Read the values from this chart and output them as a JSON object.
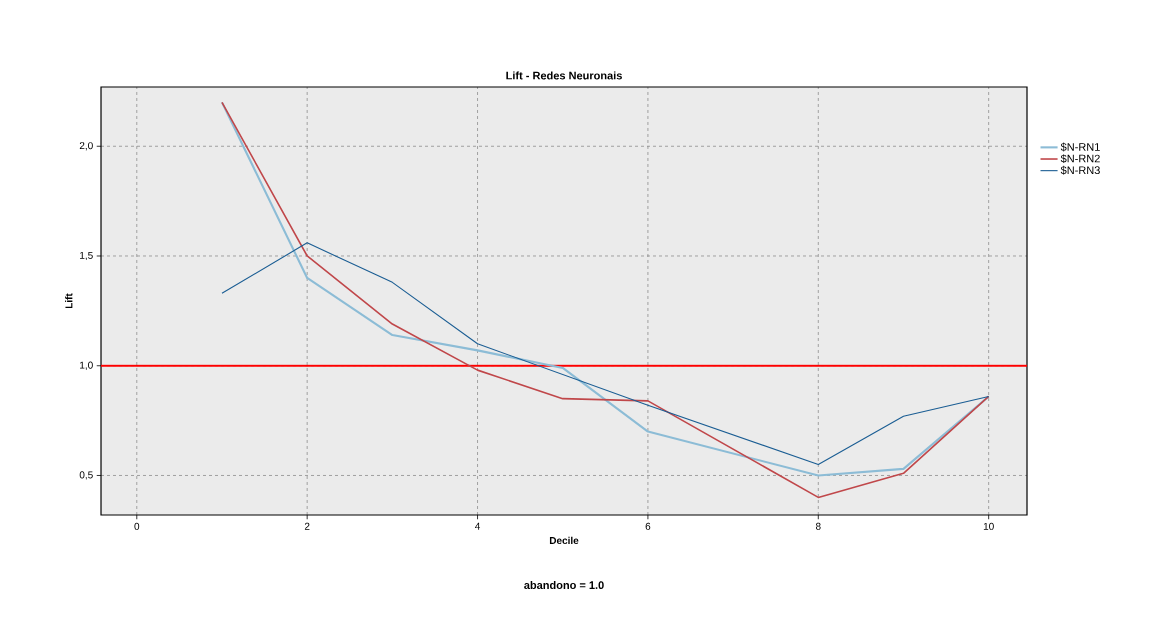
{
  "chart_data": {
    "type": "line",
    "title": "Lift - Redes Neuronais",
    "xlabel": "Decile",
    "ylabel": "Lift",
    "series": [
      {
        "name": "$N-RN1",
        "color": "#8cbcd6",
        "x": [
          1,
          2,
          3,
          4,
          5,
          6,
          8,
          9,
          10
        ],
        "values": [
          2.2,
          1.4,
          1.14,
          1.07,
          0.99,
          0.7,
          0.5,
          0.53,
          0.86
        ]
      },
      {
        "name": "$N-RN2",
        "color": "#c0474a",
        "x": [
          1,
          2,
          3,
          4,
          5,
          6,
          8,
          9,
          10
        ],
        "values": [
          2.2,
          1.5,
          1.19,
          0.98,
          0.85,
          0.84,
          0.4,
          0.51,
          0.86
        ]
      },
      {
        "name": "$N-RN3",
        "color": "#1a5d93",
        "x": [
          1,
          2,
          3,
          4,
          6,
          8,
          9,
          10
        ],
        "values": [
          1.33,
          1.56,
          1.38,
          1.1,
          0.82,
          0.55,
          0.77,
          0.86
        ]
      }
    ],
    "xlim": [
      -0.42,
      10.45
    ],
    "ylim": [
      0.32,
      2.27
    ],
    "xticks": [
      0,
      2,
      4,
      6,
      8,
      10
    ],
    "yticks": [
      {
        "value": 0.5,
        "label": "0,5"
      },
      {
        "value": 1.0,
        "label": "1,0"
      },
      {
        "value": 1.5,
        "label": "1,5"
      },
      {
        "value": 2.0,
        "label": "2,0"
      }
    ],
    "ref_lines": [
      {
        "axis": "y",
        "value": 1.0,
        "color": "#ff0000"
      }
    ],
    "annotations": [
      "abandono = 1.0"
    ],
    "grid": true,
    "legend": "top right",
    "line_style": "solid",
    "marker": "none"
  }
}
